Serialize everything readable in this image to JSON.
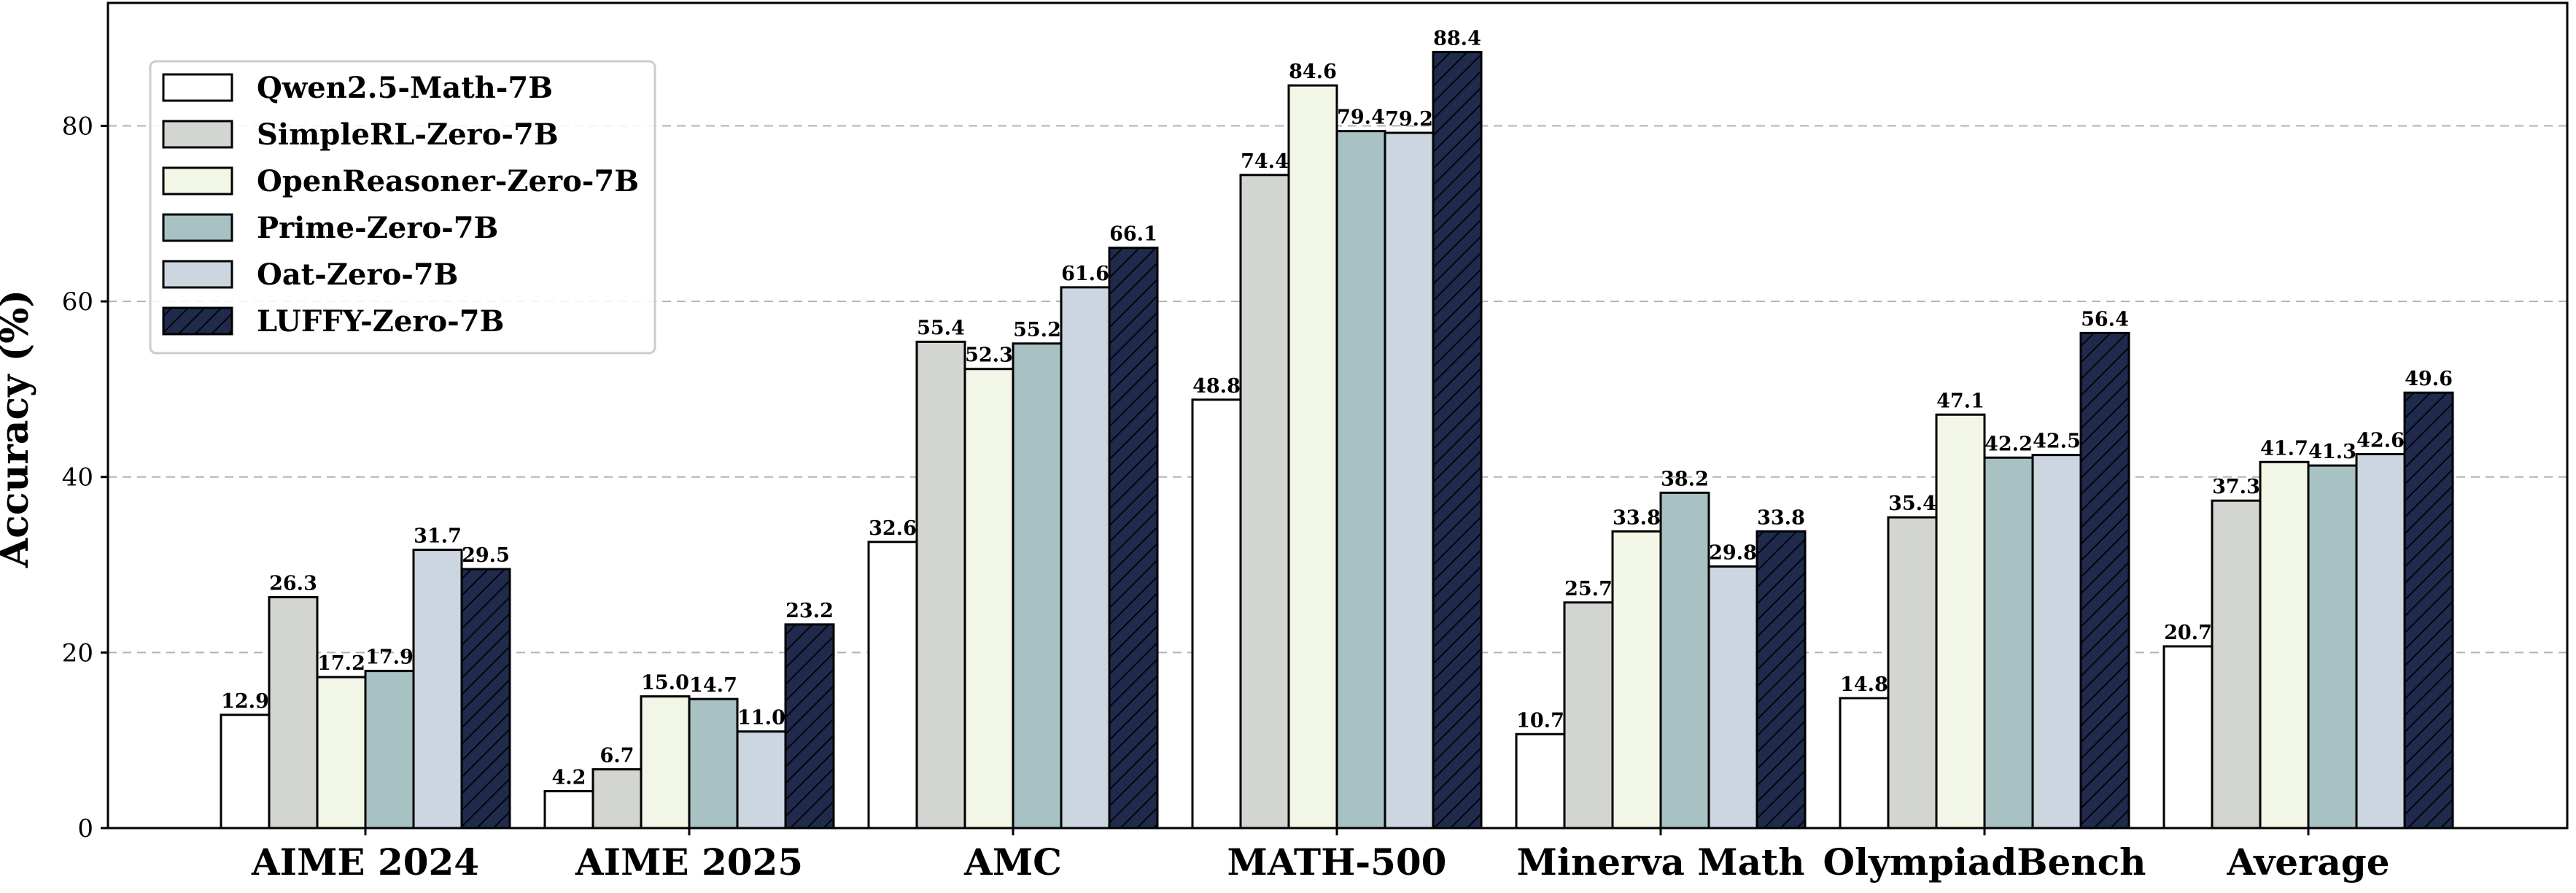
{
  "chart_data": {
    "type": "bar",
    "title": "",
    "xlabel": "",
    "ylabel": "Accuracy (%)",
    "ylim": [
      0,
      94
    ],
    "yticks": [
      0,
      20,
      40,
      60,
      80
    ],
    "grid": true,
    "legend_position": "top-left",
    "categories": [
      "AIME 2024",
      "AIME 2025",
      "AMC",
      "MATH-500",
      "Minerva Math",
      "OlympiadBench",
      "Average"
    ],
    "series": [
      {
        "name": "Qwen2.5-Math-7B",
        "color": "#ffffff",
        "hatch": false,
        "values": [
          12.9,
          4.2,
          32.6,
          48.8,
          10.7,
          14.8,
          20.7
        ]
      },
      {
        "name": "SimpleRL-Zero-7B",
        "color": "#d3d5d0",
        "hatch": false,
        "values": [
          26.3,
          6.7,
          55.4,
          74.4,
          25.7,
          35.4,
          37.3
        ]
      },
      {
        "name": "OpenReasoner-Zero-7B",
        "color": "#f2f6e6",
        "hatch": false,
        "values": [
          17.2,
          15.0,
          52.3,
          84.6,
          33.8,
          47.1,
          41.7
        ]
      },
      {
        "name": "Prime-Zero-7B",
        "color": "#a8c1c3",
        "hatch": false,
        "values": [
          17.9,
          14.7,
          55.2,
          79.4,
          38.2,
          42.2,
          41.3
        ]
      },
      {
        "name": "Oat-Zero-7B",
        "color": "#ccd6e1",
        "hatch": false,
        "values": [
          31.7,
          11.0,
          61.6,
          79.2,
          29.8,
          42.5,
          42.6
        ]
      },
      {
        "name": "LUFFY-Zero-7B",
        "color": "#1f2a4d",
        "hatch": true,
        "values": [
          29.5,
          23.2,
          66.1,
          88.4,
          33.8,
          56.4,
          49.6
        ]
      }
    ]
  }
}
